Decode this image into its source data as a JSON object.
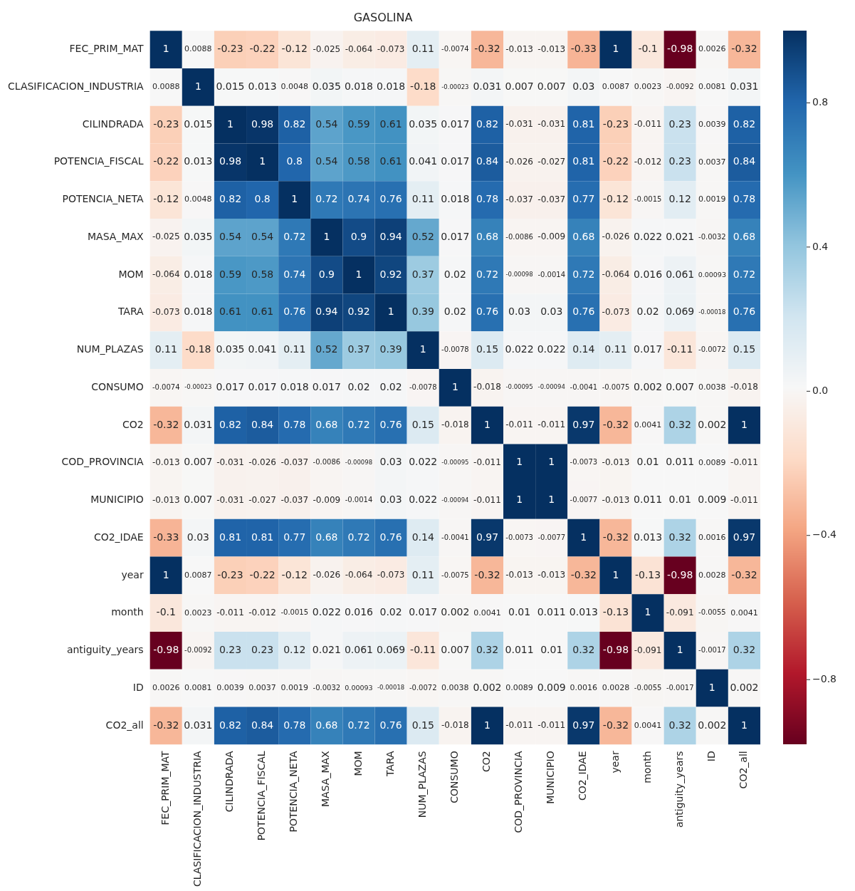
{
  "chart_data": {
    "type": "heatmap",
    "title": "GASOLINA",
    "categories": [
      "FEC_PRIM_MAT",
      "CLASIFICACION_INDUSTRIA",
      "CILINDRADA",
      "POTENCIA_FISCAL",
      "POTENCIA_NETA",
      "MASA_MAX",
      "MOM",
      "TARA",
      "NUM_PLAZAS",
      "CONSUMO",
      "CO2",
      "COD_PROVINCIA",
      "MUNICIPIO",
      "CO2_IDAE",
      "year",
      "month",
      "antiguity_years",
      "ID",
      "CO2_all"
    ],
    "y_categories": [
      "FEC_PRIM_MAT",
      "CLASIFICACION_INDUSTRIA",
      "CILINDRADA",
      "POTENCIA_FISCAL",
      "POTENCIA_NETA",
      "MASA_MAX",
      "MOM",
      "TARA",
      "NUM_PLAZAS",
      "CONSUMO",
      "CO2",
      "COD_PROVINCIA",
      "MUNICIPIO",
      "CO2_IDAE",
      "year",
      "month",
      "antiguity_years",
      "ID",
      "CO2_all"
    ],
    "cells": [
      [
        1,
        0.0088,
        -0.23,
        -0.22,
        -0.12,
        -0.025,
        -0.064,
        -0.073,
        0.11,
        -0.0074,
        -0.32,
        -0.013,
        -0.013,
        -0.33,
        1,
        -0.1,
        -0.98,
        0.0026,
        -0.32
      ],
      [
        0.0088,
        1,
        0.015,
        0.013,
        0.0048,
        0.035,
        0.018,
        0.018,
        -0.18,
        -0.00023,
        0.031,
        0.007,
        0.007,
        0.03,
        0.0087,
        0.0023,
        -0.0092,
        0.0081,
        0.031
      ],
      [
        -0.23,
        0.015,
        1,
        0.98,
        0.82,
        0.54,
        0.59,
        0.61,
        0.035,
        0.017,
        0.82,
        -0.031,
        -0.031,
        0.81,
        -0.23,
        -0.011,
        0.23,
        0.0039,
        0.82
      ],
      [
        -0.22,
        0.013,
        0.98,
        1,
        0.8,
        0.54,
        0.58,
        0.61,
        0.041,
        0.017,
        0.84,
        -0.026,
        -0.027,
        0.81,
        -0.22,
        -0.012,
        0.23,
        0.0037,
        0.84
      ],
      [
        -0.12,
        0.0048,
        0.82,
        0.8,
        1,
        0.72,
        0.74,
        0.76,
        0.11,
        0.018,
        0.78,
        -0.037,
        -0.037,
        0.77,
        -0.12,
        -0.0015,
        0.12,
        0.0019,
        0.78
      ],
      [
        -0.025,
        0.035,
        0.54,
        0.54,
        0.72,
        1,
        0.9,
        0.94,
        0.52,
        0.017,
        0.68,
        -0.0086,
        -0.009,
        0.68,
        -0.026,
        0.022,
        0.021,
        -0.0032,
        0.68
      ],
      [
        -0.064,
        0.018,
        0.59,
        0.58,
        0.74,
        0.9,
        1,
        0.92,
        0.37,
        0.02,
        0.72,
        -0.00098,
        -0.0014,
        0.72,
        -0.064,
        0.016,
        0.061,
        0.00093,
        0.72
      ],
      [
        -0.073,
        0.018,
        0.61,
        0.61,
        0.76,
        0.94,
        0.92,
        1,
        0.39,
        0.02,
        0.76,
        0.03,
        0.03,
        0.76,
        -0.073,
        0.02,
        0.069,
        -0.00018,
        0.76
      ],
      [
        0.11,
        -0.18,
        0.035,
        0.041,
        0.11,
        0.52,
        0.37,
        0.39,
        1,
        -0.0078,
        0.15,
        0.022,
        0.022,
        0.14,
        0.11,
        0.017,
        -0.11,
        -0.0072,
        0.15
      ],
      [
        -0.0074,
        -0.00023,
        0.017,
        0.017,
        0.018,
        0.017,
        0.02,
        0.02,
        -0.0078,
        1,
        -0.018,
        -0.00095,
        -0.00094,
        -0.0041,
        -0.0075,
        0.002,
        0.007,
        0.0038,
        -0.018
      ],
      [
        -0.32,
        0.031,
        0.82,
        0.84,
        0.78,
        0.68,
        0.72,
        0.76,
        0.15,
        -0.018,
        1,
        -0.011,
        -0.011,
        0.97,
        -0.32,
        0.0041,
        0.32,
        0.002,
        1
      ],
      [
        -0.013,
        0.007,
        -0.031,
        -0.026,
        -0.037,
        -0.0086,
        -0.00098,
        0.03,
        0.022,
        -0.00095,
        -0.011,
        1,
        1,
        -0.0073,
        -0.013,
        0.01,
        0.011,
        0.0089,
        -0.011
      ],
      [
        -0.013,
        0.007,
        -0.031,
        -0.027,
        -0.037,
        -0.009,
        -0.0014,
        0.03,
        0.022,
        -0.00094,
        -0.011,
        1,
        1,
        -0.0077,
        -0.013,
        0.011,
        0.01,
        0.009,
        -0.011
      ],
      [
        -0.33,
        0.03,
        0.81,
        0.81,
        0.77,
        0.68,
        0.72,
        0.76,
        0.14,
        -0.0041,
        0.97,
        -0.0073,
        -0.0077,
        1,
        -0.32,
        0.013,
        0.32,
        0.0016,
        0.97
      ],
      [
        1,
        0.0087,
        -0.23,
        -0.22,
        -0.12,
        -0.026,
        -0.064,
        -0.073,
        0.11,
        -0.0075,
        -0.32,
        -0.013,
        -0.013,
        -0.32,
        1,
        -0.13,
        -0.98,
        0.0028,
        -0.32
      ],
      [
        -0.1,
        0.0023,
        -0.011,
        -0.012,
        -0.0015,
        0.022,
        0.016,
        0.02,
        0.017,
        0.002,
        0.0041,
        0.01,
        0.011,
        0.013,
        -0.13,
        1,
        -0.091,
        -0.0055,
        0.0041
      ],
      [
        -0.98,
        -0.0092,
        0.23,
        0.23,
        0.12,
        0.021,
        0.061,
        0.069,
        -0.11,
        0.007,
        0.32,
        0.011,
        0.01,
        0.32,
        -0.98,
        -0.091,
        1,
        -0.0017,
        0.32
      ],
      [
        0.0026,
        0.0081,
        0.0039,
        0.0037,
        0.0019,
        -0.0032,
        0.00093,
        -0.00018,
        -0.0072,
        0.0038,
        0.002,
        0.0089,
        0.009,
        0.0016,
        0.0028,
        -0.0055,
        -0.0017,
        1,
        0.002
      ],
      [
        -0.32,
        0.031,
        0.82,
        0.84,
        0.78,
        0.68,
        0.72,
        0.76,
        0.15,
        -0.018,
        1,
        -0.011,
        -0.011,
        0.97,
        -0.32,
        0.0041,
        0.32,
        0.002,
        1
      ]
    ],
    "clim": [
      -0.98,
      1
    ],
    "cticks": [
      {
        "value": -0.8,
        "label": "−0.8"
      },
      {
        "value": -0.4,
        "label": "−0.4"
      },
      {
        "value": 0,
        "label": "0.0"
      },
      {
        "value": 0.4,
        "label": "0.4"
      },
      {
        "value": 0.8,
        "label": "0.8"
      }
    ],
    "data_labels": true
  }
}
